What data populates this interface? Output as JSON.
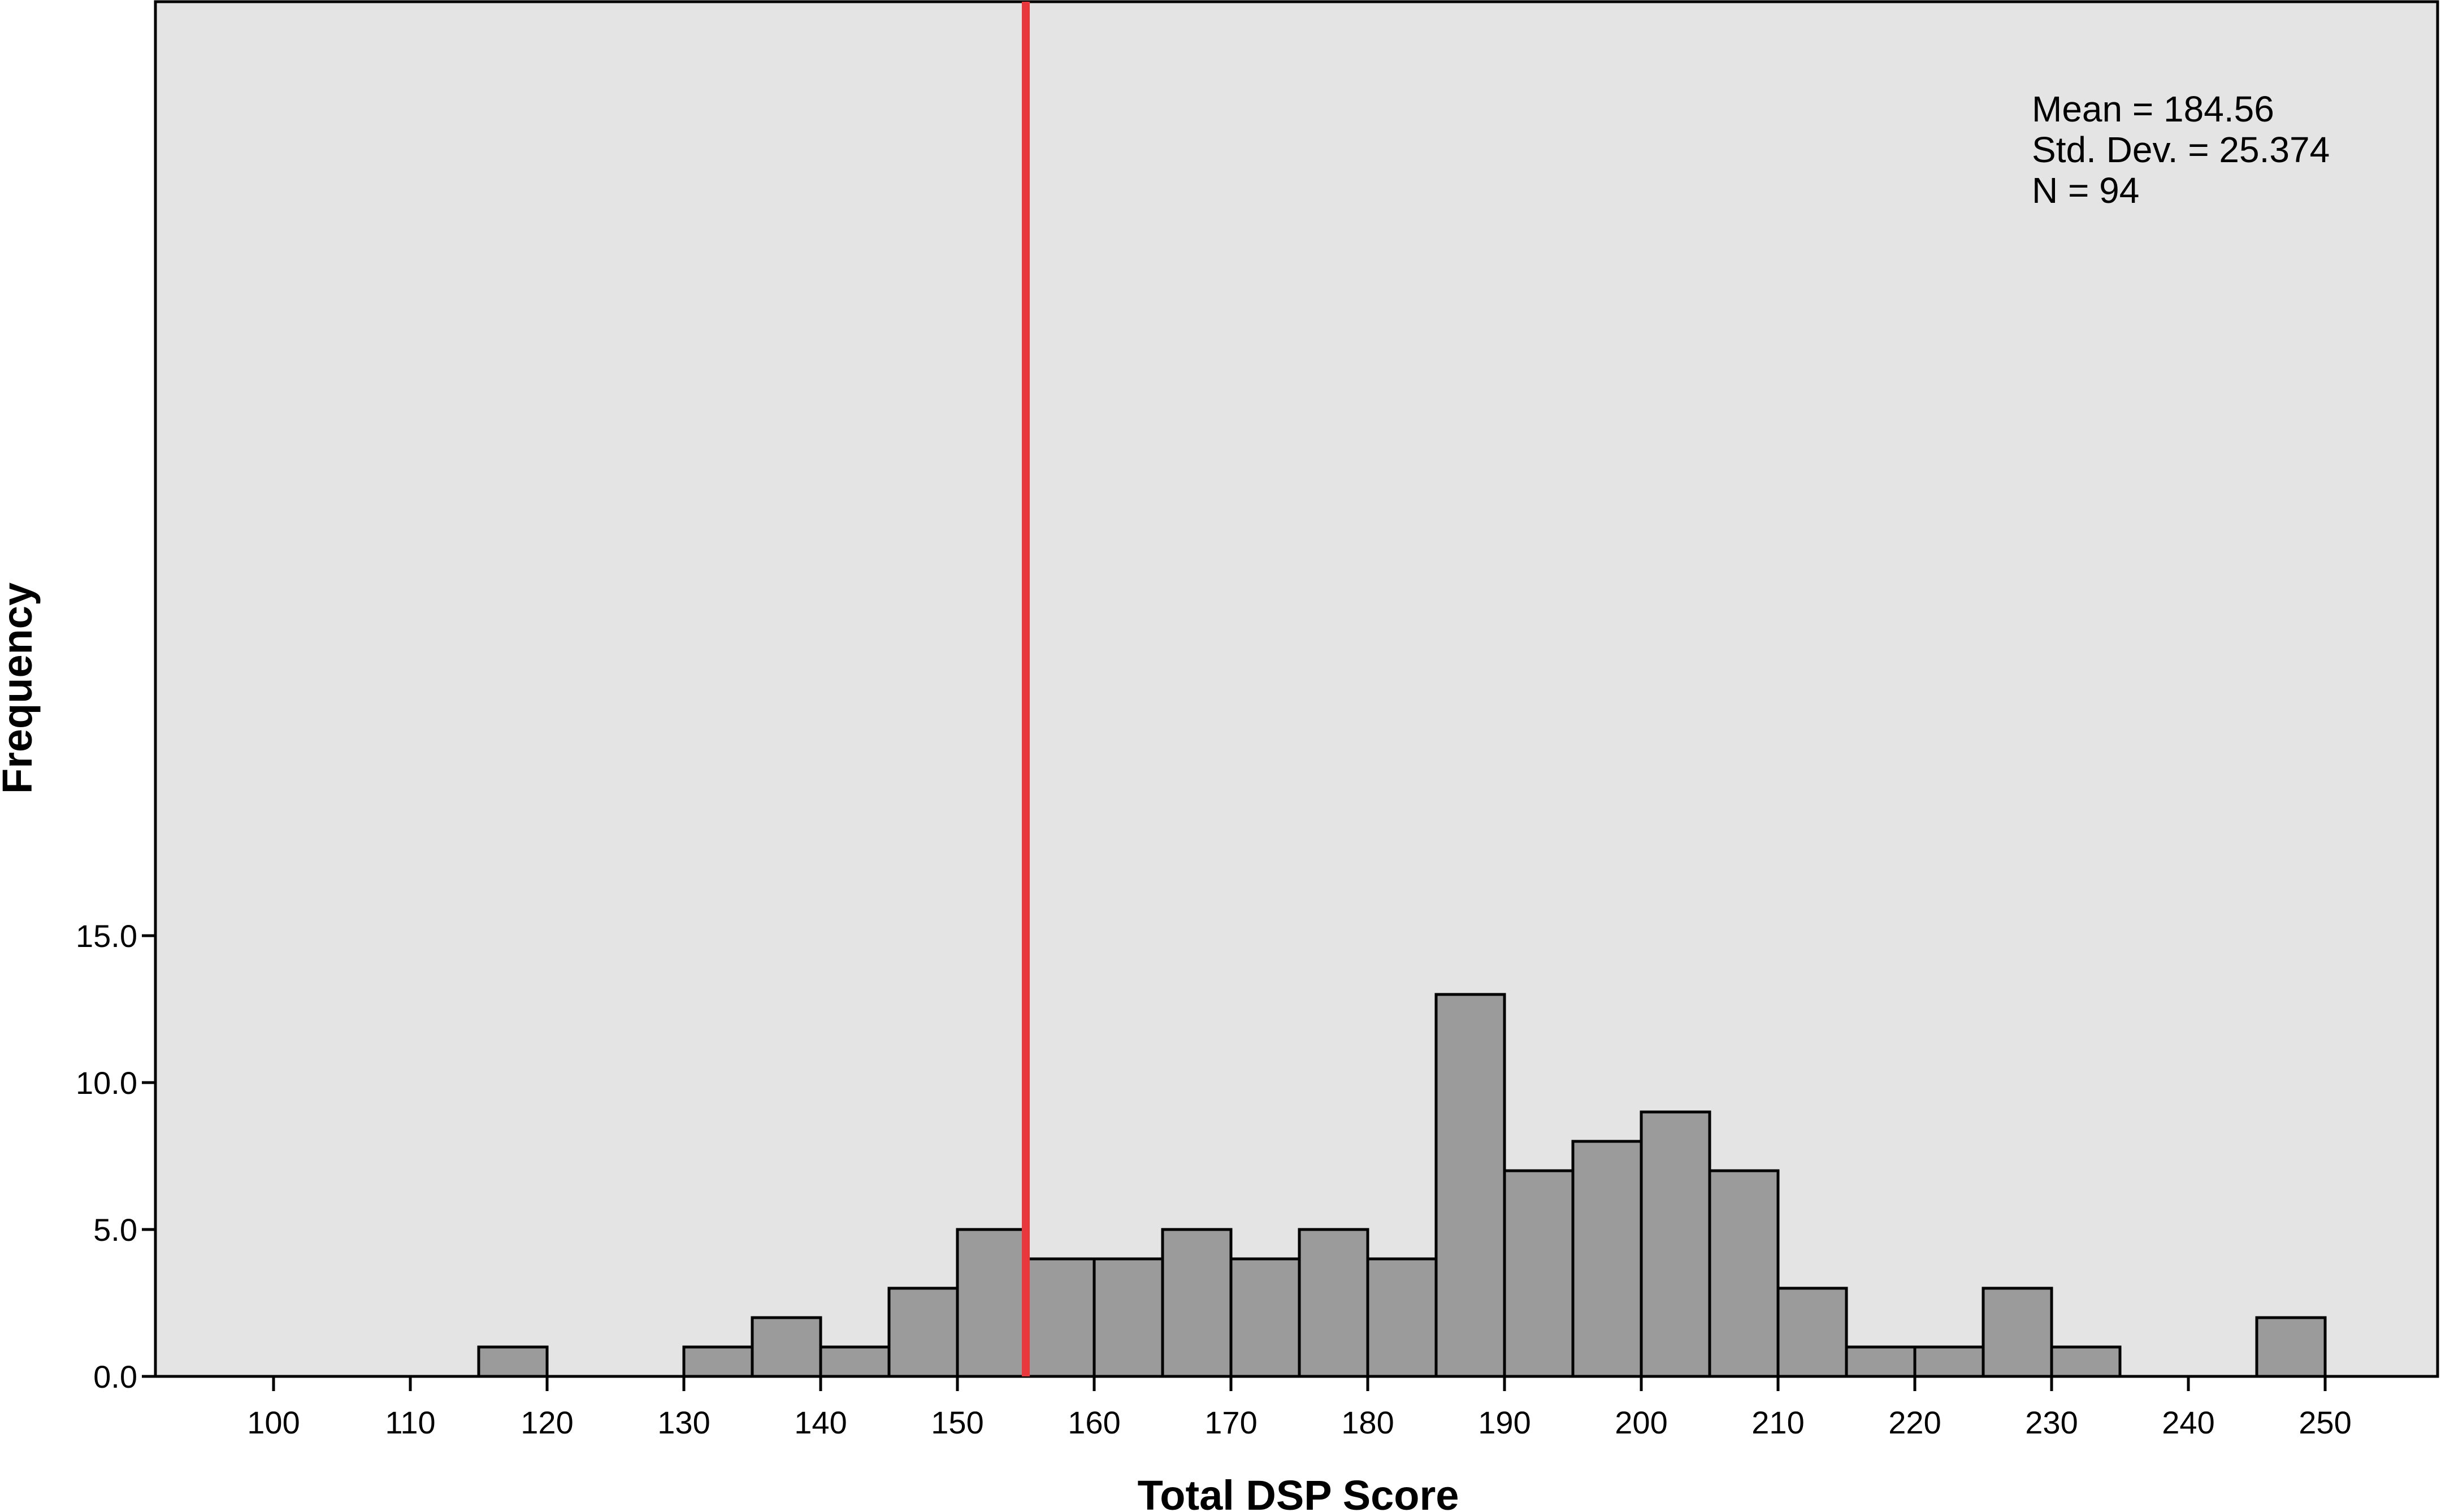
{
  "chart_data": {
    "type": "bar",
    "subtype": "histogram",
    "xlabel": "Total DSP Score",
    "ylabel": "Frequency",
    "x_ticks": [
      "100",
      "110",
      "120",
      "130",
      "140",
      "150",
      "160",
      "170",
      "180",
      "190",
      "200",
      "210",
      "220",
      "230",
      "240",
      "250"
    ],
    "x_tick_values": [
      100,
      110,
      120,
      130,
      140,
      150,
      160,
      170,
      180,
      190,
      200,
      210,
      220,
      230,
      240,
      250
    ],
    "y_ticks": [
      "0.0",
      "5.0",
      "10.0",
      "15.0"
    ],
    "y_tick_values": [
      0,
      5,
      10,
      15
    ],
    "xlim": [
      95,
      250
    ],
    "ylim": [
      0,
      15
    ],
    "bin_width": 5,
    "bins": [
      {
        "start": 115,
        "end": 120,
        "count": 1
      },
      {
        "start": 130,
        "end": 135,
        "count": 1
      },
      {
        "start": 135,
        "end": 140,
        "count": 2
      },
      {
        "start": 140,
        "end": 145,
        "count": 1
      },
      {
        "start": 145,
        "end": 150,
        "count": 3
      },
      {
        "start": 150,
        "end": 155,
        "count": 5
      },
      {
        "start": 155,
        "end": 160,
        "count": 4
      },
      {
        "start": 160,
        "end": 165,
        "count": 4
      },
      {
        "start": 165,
        "end": 170,
        "count": 5
      },
      {
        "start": 170,
        "end": 175,
        "count": 4
      },
      {
        "start": 175,
        "end": 180,
        "count": 5
      },
      {
        "start": 180,
        "end": 185,
        "count": 4
      },
      {
        "start": 185,
        "end": 190,
        "count": 13
      },
      {
        "start": 190,
        "end": 195,
        "count": 7
      },
      {
        "start": 195,
        "end": 200,
        "count": 8
      },
      {
        "start": 200,
        "end": 205,
        "count": 9
      },
      {
        "start": 205,
        "end": 210,
        "count": 7
      },
      {
        "start": 210,
        "end": 215,
        "count": 3
      },
      {
        "start": 215,
        "end": 220,
        "count": 1
      },
      {
        "start": 220,
        "end": 225,
        "count": 1
      },
      {
        "start": 225,
        "end": 230,
        "count": 3
      },
      {
        "start": 230,
        "end": 235,
        "count": 1
      },
      {
        "start": 245,
        "end": 250,
        "count": 2
      }
    ],
    "reference_line": {
      "x": 155,
      "color": "#e8383d"
    },
    "stats": {
      "mean": "Mean = 184.56",
      "std_dev": "Std. Dev. = 25.374",
      "n": "N = 94"
    },
    "stats_placement": "top-right",
    "grid": false,
    "colors": {
      "plot_background": "#e4e4e4",
      "bar_fill": "#9b9b9b",
      "bar_stroke": "#000000",
      "axis": "#000000"
    }
  }
}
